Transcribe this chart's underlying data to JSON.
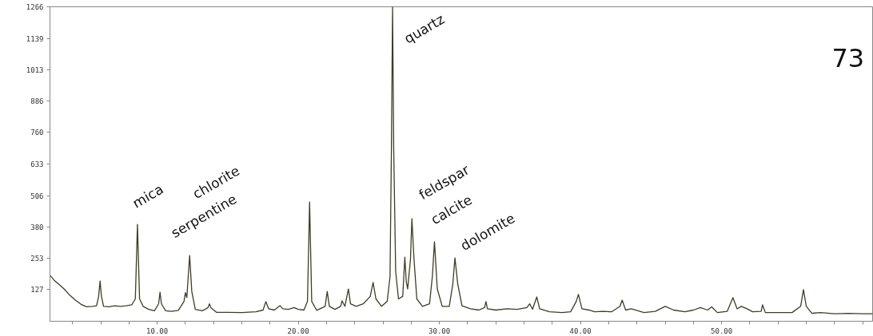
{
  "chart_data": {
    "type": "line",
    "x": [
      2.4,
      2.7,
      3.0,
      3.4,
      3.8,
      4.2,
      4.6,
      5.0,
      5.4,
      5.7,
      5.85,
      5.95,
      6.05,
      6.2,
      6.6,
      7.0,
      7.4,
      7.8,
      8.2,
      8.45,
      8.6,
      8.75,
      9.0,
      9.4,
      9.8,
      10.1,
      10.2,
      10.3,
      10.6,
      11.0,
      11.5,
      11.9,
      12.0,
      12.1,
      12.3,
      12.45,
      12.7,
      13.2,
      13.6,
      13.7,
      13.8,
      14.2,
      15.0,
      16.0,
      17.0,
      17.5,
      17.7,
      17.9,
      18.3,
      18.7,
      18.9,
      19.3,
      19.7,
      20.0,
      20.4,
      20.65,
      20.8,
      20.95,
      21.3,
      21.9,
      22.05,
      22.2,
      22.6,
      23.0,
      23.1,
      23.3,
      23.55,
      23.7,
      24.1,
      24.6,
      25.1,
      25.3,
      25.5,
      25.9,
      26.3,
      26.5,
      26.6,
      26.68,
      26.76,
      26.9,
      27.1,
      27.4,
      27.55,
      27.65,
      27.75,
      27.95,
      28.05,
      28.2,
      28.4,
      28.8,
      29.3,
      29.5,
      29.65,
      29.85,
      30.2,
      30.7,
      30.95,
      31.1,
      31.3,
      31.6,
      32.2,
      32.8,
      33.2,
      33.3,
      33.4,
      34.0,
      34.8,
      35.5,
      36.2,
      36.4,
      36.6,
      36.9,
      37.1,
      37.8,
      38.7,
      39.3,
      39.7,
      39.85,
      40.1,
      40.6,
      41.0,
      41.6,
      42.2,
      42.8,
      42.95,
      43.2,
      43.6,
      44.5,
      45.3,
      46.0,
      46.6,
      47.4,
      48.0,
      48.5,
      49.0,
      49.3,
      49.7,
      50.4,
      50.8,
      51.1,
      51.4,
      51.8,
      52.2,
      52.8,
      52.9,
      53.1,
      54.0,
      55.0,
      55.6,
      55.8,
      56.0,
      56.4,
      57.0,
      58.0,
      59.0,
      60.0,
      60.7
    ],
    "series": [
      {
        "color": "#3d3d24",
        "values": [
          185,
          165,
          150,
          130,
          105,
          85,
          68,
          58,
          60,
          62,
          100,
          162,
          100,
          60,
          58,
          62,
          60,
          62,
          66,
          90,
          390,
          90,
          60,
          48,
          42,
          70,
          117,
          70,
          42,
          40,
          44,
          80,
          115,
          95,
          265,
          120,
          48,
          42,
          55,
          70,
          55,
          36,
          36,
          35,
          38,
          45,
          79,
          50,
          45,
          63,
          50,
          48,
          55,
          48,
          45,
          80,
          480,
          80,
          44,
          60,
          120,
          60,
          48,
          60,
          82,
          60,
          130,
          70,
          60,
          70,
          100,
          156,
          90,
          60,
          80,
          180,
          700,
          1266,
          700,
          200,
          90,
          100,
          258,
          160,
          130,
          250,
          413,
          250,
          90,
          60,
          70,
          180,
          320,
          130,
          60,
          60,
          150,
          255,
          150,
          62,
          50,
          45,
          55,
          79,
          50,
          45,
          50,
          48,
          55,
          70,
          48,
          98,
          50,
          38,
          35,
          38,
          80,
          108,
          50,
          45,
          38,
          40,
          38,
          60,
          85,
          45,
          50,
          35,
          40,
          60,
          45,
          38,
          45,
          55,
          45,
          58,
          35,
          40,
          95,
          50,
          60,
          50,
          38,
          40,
          66,
          35,
          35,
          35,
          60,
          127,
          60,
          32,
          35,
          30,
          32,
          30,
          30
        ]
      }
    ],
    "xlim": [
      2.4,
      60.7
    ],
    "ylim": [
      0,
      1266
    ],
    "xticks": [
      {
        "value": 4,
        "label": null
      },
      {
        "value": 6,
        "label": null
      },
      {
        "value": 8,
        "label": null
      },
      {
        "value": 10,
        "label": "10.00"
      },
      {
        "value": 12,
        "label": null
      },
      {
        "value": 14,
        "label": null
      },
      {
        "value": 16,
        "label": null
      },
      {
        "value": 18,
        "label": null
      },
      {
        "value": 20,
        "label": "20.00"
      },
      {
        "value": 22,
        "label": null
      },
      {
        "value": 24,
        "label": null
      },
      {
        "value": 26,
        "label": null
      },
      {
        "value": 28,
        "label": null
      },
      {
        "value": 30,
        "label": "30.00"
      },
      {
        "value": 32,
        "label": null
      },
      {
        "value": 34,
        "label": null
      },
      {
        "value": 36,
        "label": null
      },
      {
        "value": 38,
        "label": null
      },
      {
        "value": 40,
        "label": "40.00"
      },
      {
        "value": 42,
        "label": null
      },
      {
        "value": 44,
        "label": null
      },
      {
        "value": 46,
        "label": null
      },
      {
        "value": 48,
        "label": null
      },
      {
        "value": 50,
        "label": "50.00"
      },
      {
        "value": 52,
        "label": null
      },
      {
        "value": 54,
        "label": null
      },
      {
        "value": 56,
        "label": null
      },
      {
        "value": 58,
        "label": null
      },
      {
        "value": 60,
        "label": null
      }
    ],
    "yticks": [
      127,
      253,
      380,
      506,
      633,
      760,
      886,
      1013,
      1139,
      1266
    ],
    "annotations": [
      "mica",
      "chlorite",
      "serpentine",
      "quartz",
      "feldspar",
      "calcite",
      "dolomite",
      "73"
    ],
    "grid": false,
    "marker": "none",
    "line_style": "solid"
  }
}
